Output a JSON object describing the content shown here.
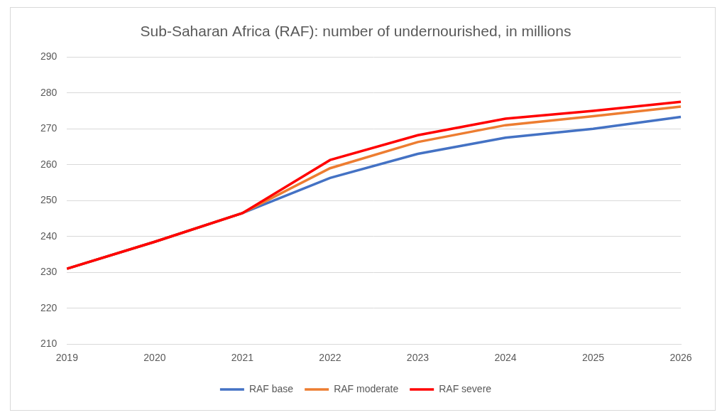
{
  "chart_data": {
    "type": "line",
    "title": "Sub-Saharan Africa (RAF): number of undernourished, in millions",
    "categories": [
      "2019",
      "2020",
      "2021",
      "2022",
      "2023",
      "2024",
      "2025",
      "2026"
    ],
    "series": [
      {
        "name": "RAF base",
        "color": "#4472c4",
        "values": [
          231,
          238.5,
          246.5,
          256.3,
          263,
          267.5,
          270,
          273.3
        ]
      },
      {
        "name": "RAF moderate",
        "color": "#ed7d31",
        "values": [
          231,
          238.5,
          246.5,
          259,
          266.3,
          271,
          273.5,
          276.2
        ]
      },
      {
        "name": "RAF severe",
        "color": "#ff0000",
        "values": [
          231,
          238.5,
          246.5,
          261.3,
          268.2,
          272.8,
          275,
          277.5
        ]
      }
    ],
    "ylim": [
      210,
      290
    ],
    "yticks": [
      210,
      220,
      230,
      240,
      250,
      260,
      270,
      280,
      290
    ],
    "grid": true,
    "legend": "bottom"
  }
}
